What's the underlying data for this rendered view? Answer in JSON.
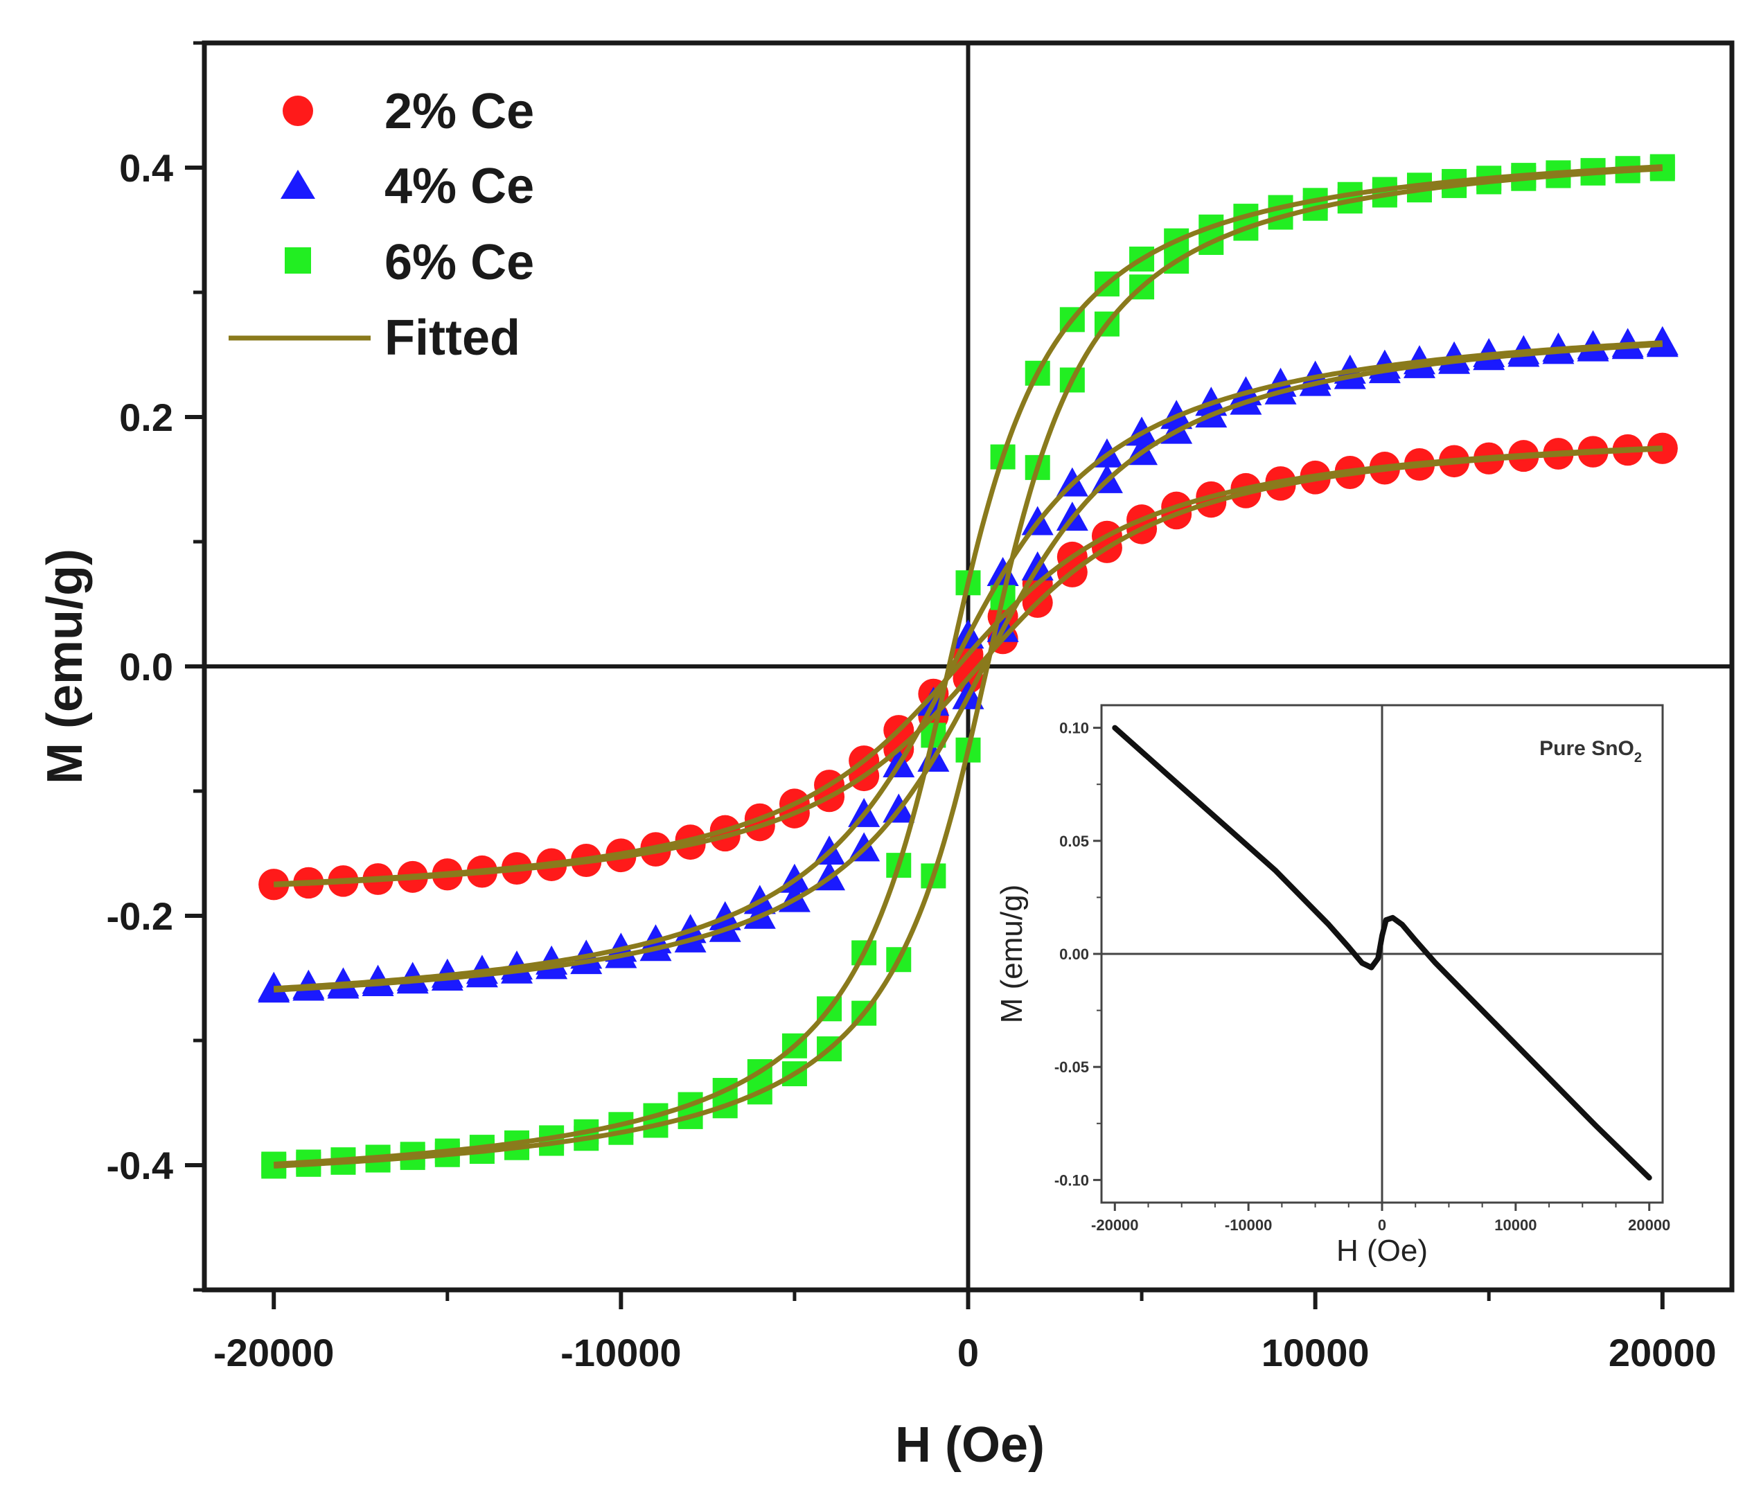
{
  "chart_data": [
    {
      "type": "scatter",
      "title": "",
      "xlabel": "H (Oe)",
      "ylabel": "M (emu/g)",
      "xlim": [
        -22000,
        22000
      ],
      "ylim": [
        -0.5,
        0.5
      ],
      "xticks": [
        -20000,
        -10000,
        0,
        10000,
        20000
      ],
      "yticks": [
        -0.4,
        -0.2,
        0.0,
        0.2,
        0.4
      ],
      "xtick_labels": [
        "-20000",
        "-10000",
        "0",
        "10000",
        "20000"
      ],
      "ytick_labels": [
        "-0.4",
        "-0.2",
        "0.0",
        "0.2",
        "0.4"
      ],
      "legend_position": "top-left",
      "series": [
        {
          "name": "2% Ce",
          "marker": "circle",
          "color": "#ff1a1a",
          "ms": 0.2,
          "hk": 4000,
          "hc": 300
        },
        {
          "name": "4% Ce",
          "marker": "triangle",
          "color": "#1a1aff",
          "ms": 0.29,
          "hk": 3400,
          "hc": 450
        },
        {
          "name": "6% Ce",
          "marker": "square",
          "color": "#22ee22",
          "ms": 0.43,
          "hk": 2200,
          "hc": 550
        },
        {
          "name": "Fitted",
          "marker": "line",
          "color": "#8a7a1c"
        }
      ],
      "x_range": [
        -20000,
        20000
      ]
    },
    {
      "type": "line",
      "title": "Pure SnO",
      "title_sub": "2",
      "xlabel": "H (Oe)",
      "ylabel": "M (emu/g)",
      "xlim": [
        -21000,
        21000
      ],
      "ylim": [
        -0.11,
        0.11
      ],
      "xticks": [
        -20000,
        -10000,
        0,
        10000,
        20000
      ],
      "yticks": [
        -0.1,
        -0.05,
        0.0,
        0.05,
        0.1
      ],
      "xtick_labels": [
        "-20000",
        "-10000",
        "0",
        "10000",
        "20000"
      ],
      "ytick_labels": [
        "-0.10",
        "-0.05",
        "0.00",
        "0.05",
        "0.10"
      ],
      "series": [
        {
          "name": "Pure SnO2",
          "color": "#111111",
          "x": [
            -20000,
            -16000,
            -12000,
            -8000,
            -4000,
            -2500,
            -1500,
            -800,
            -300,
            0,
            300,
            800,
            1500,
            2500,
            4000,
            8000,
            12000,
            16000,
            20000
          ],
          "y": [
            0.1,
            0.079,
            0.058,
            0.037,
            0.013,
            0.003,
            -0.004,
            -0.006,
            -0.002,
            0.008,
            0.015,
            0.016,
            0.013,
            0.006,
            -0.004,
            -0.028,
            -0.052,
            -0.076,
            -0.099
          ]
        }
      ]
    }
  ]
}
